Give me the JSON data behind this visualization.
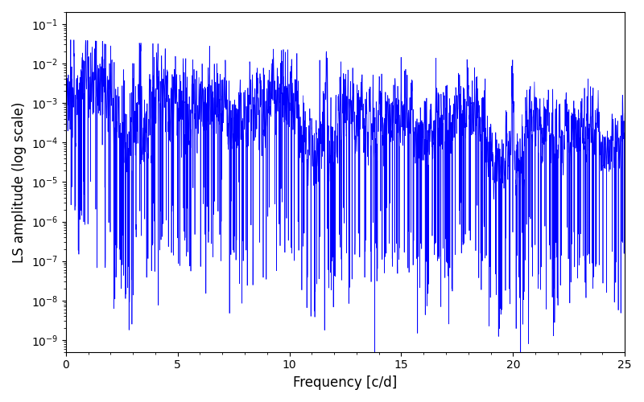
{
  "xlabel": "Frequency [c/d]",
  "ylabel": "LS amplitude (log scale)",
  "xlim": [
    0,
    25
  ],
  "ylim": [
    5e-10,
    0.2
  ],
  "line_color": "#0000ff",
  "line_width": 0.5,
  "background_color": "#ffffff",
  "figsize": [
    8.0,
    5.0
  ],
  "dpi": 100,
  "seed": 7,
  "n_points": 4000,
  "freq_max": 25.0
}
